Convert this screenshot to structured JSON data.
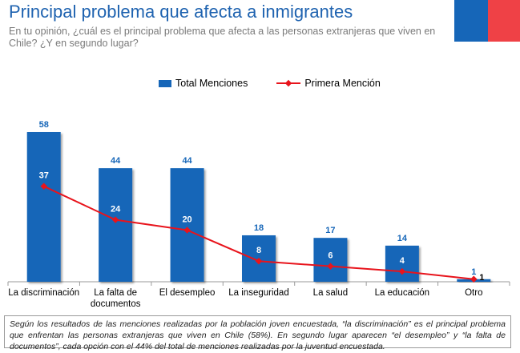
{
  "header": {
    "title": "Principal problema que afecta a inmigrantes",
    "subtitle": "En tu opinión, ¿cuál es el principal problema que afecta a las personas extranjeras que viven en Chile? ¿Y en segundo lugar?"
  },
  "colors": {
    "bar": "#1666b8",
    "line": "#e8141c",
    "title": "#1f63b0",
    "flag_blue": "#1666b8",
    "flag_red": "#ef4146"
  },
  "chart_data": {
    "type": "bar",
    "title": "Principal problema que afecta a inmigrantes",
    "xlabel": "",
    "ylabel": "",
    "ylim": [
      0,
      58
    ],
    "legend_position": "top-center",
    "categories": [
      "La discriminación",
      "La falta de documentos",
      "El desempleo",
      "La inseguridad",
      "La salud",
      "La educación",
      "Otro"
    ],
    "category_lines": [
      [
        "La discriminación"
      ],
      [
        "La falta de",
        "documentos"
      ],
      [
        "El desempleo"
      ],
      [
        "La inseguridad"
      ],
      [
        "La salud"
      ],
      [
        "La educación"
      ],
      [
        "Otro"
      ]
    ],
    "series": [
      {
        "name": "Total Menciones",
        "type": "bar",
        "values": [
          58,
          44,
          44,
          18,
          17,
          14,
          1
        ]
      },
      {
        "name": "Primera Mención",
        "type": "line",
        "values": [
          37,
          24,
          20,
          8,
          6,
          4,
          1
        ]
      }
    ]
  },
  "footnote": "Según los resultados de las menciones realizadas por la población joven encuestada, “la discriminación” es el principal problema que enfrentan las personas extranjeras que viven en Chile (58%). En segundo lugar aparecen “el desempleo” y “la falta de documentos”, cada opción con el 44% del total de menciones realizadas por la juventud encuestada."
}
